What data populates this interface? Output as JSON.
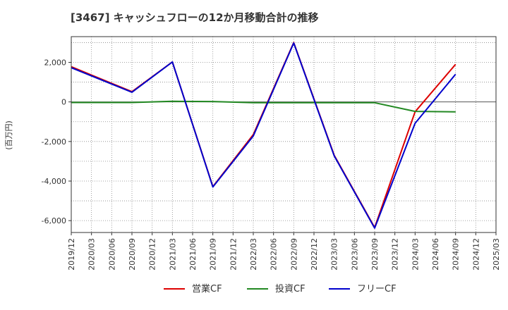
{
  "chart_data": {
    "type": "line",
    "title": "[3467]  キャッシュフローの12か月移動合計の推移",
    "ylabel": "(百万円)",
    "xlabel": "",
    "ylim": [
      -6600,
      3300
    ],
    "yticks": [
      2000,
      0,
      -2000,
      -4000,
      -6000
    ],
    "ytick_labels": [
      "2,000",
      "0",
      "-2,000",
      "-4,000",
      "-6,000"
    ],
    "x": [
      "2019/12",
      "2020/03",
      "2020/06",
      "2020/09",
      "2020/12",
      "2021/03",
      "2021/06",
      "2021/09",
      "2021/12",
      "2022/03",
      "2022/06",
      "2022/09",
      "2022/12",
      "2023/03",
      "2023/06",
      "2023/09",
      "2023/12",
      "2024/03",
      "2024/06",
      "2024/09",
      "2024/12",
      "2025/03"
    ],
    "grid": true,
    "legend_position": "bottom",
    "series": [
      {
        "name": "営業CF",
        "color": "#dd0000",
        "values": [
          1780,
          null,
          null,
          520,
          null,
          2020,
          null,
          -4280,
          null,
          -1650,
          null,
          3000,
          null,
          -2700,
          null,
          -6350,
          null,
          -500,
          null,
          1900,
          null,
          null
        ]
      },
      {
        "name": "投資CF",
        "color": "#228822",
        "values": [
          -30,
          null,
          null,
          -30,
          null,
          30,
          null,
          20,
          null,
          -40,
          null,
          -40,
          null,
          -40,
          null,
          -40,
          null,
          -480,
          null,
          -500,
          null,
          null
        ]
      },
      {
        "name": "フリーCF",
        "color": "#0000cc",
        "values": [
          1730,
          null,
          null,
          490,
          null,
          2020,
          null,
          -4300,
          null,
          -1720,
          null,
          2980,
          null,
          -2730,
          null,
          -6380,
          null,
          -1080,
          null,
          1400,
          null,
          null
        ]
      }
    ]
  }
}
